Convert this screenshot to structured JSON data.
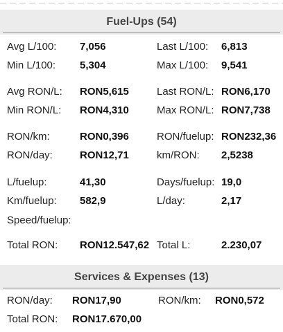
{
  "fuel_section": {
    "title": "Fuel-Ups (54)",
    "stats": {
      "avg_l100_label": "Avg L/100:",
      "avg_l100_value": "7,056",
      "last_l100_label": "Last L/100:",
      "last_l100_value": "6,813",
      "min_l100_label": "Min L/100:",
      "min_l100_value": "5,304",
      "max_l100_label": "Max L/100:",
      "max_l100_value": "9,541",
      "avg_ron_l_label": "Avg RON/L:",
      "avg_ron_l_value": "RON5,615",
      "last_ron_l_label": "Last RON/L:",
      "last_ron_l_value": "RON6,170",
      "min_ron_l_label": "Min RON/L:",
      "min_ron_l_value": "RON4,310",
      "max_ron_l_label": "Max RON/L:",
      "max_ron_l_value": "RON7,738",
      "ron_km_label": "RON/km:",
      "ron_km_value": "RON0,396",
      "ron_fuelup_label": "RON/fuelup:",
      "ron_fuelup_value": "RON232,36",
      "ron_day_label": "RON/day:",
      "ron_day_value": "RON12,71",
      "km_ron_label": "km/RON:",
      "km_ron_value": "2,5238",
      "l_fuelup_label": "L/fuelup:",
      "l_fuelup_value": "41,30",
      "days_fuelup_label": "Days/fuelup:",
      "days_fuelup_value": "19,0",
      "km_fuelup_label": "Km/fuelup:",
      "km_fuelup_value": "582,9",
      "l_day_label": "L/day:",
      "l_day_value": "2,17",
      "speed_fuelup_label": "Speed/fuelup:",
      "total_ron_label": "Total RON:",
      "total_ron_value": "RON12.547,62",
      "total_l_label": "Total L:",
      "total_l_value": "2.230,07"
    }
  },
  "services_section": {
    "title": "Services & Expenses (13)",
    "stats": {
      "ron_day_label": "RON/day:",
      "ron_day_value": "RON17,90",
      "ron_km_label": "RON/km:",
      "ron_km_value": "RON0,572",
      "total_ron_label": "Total RON:",
      "total_ron_value": "RON17.670,00"
    }
  }
}
